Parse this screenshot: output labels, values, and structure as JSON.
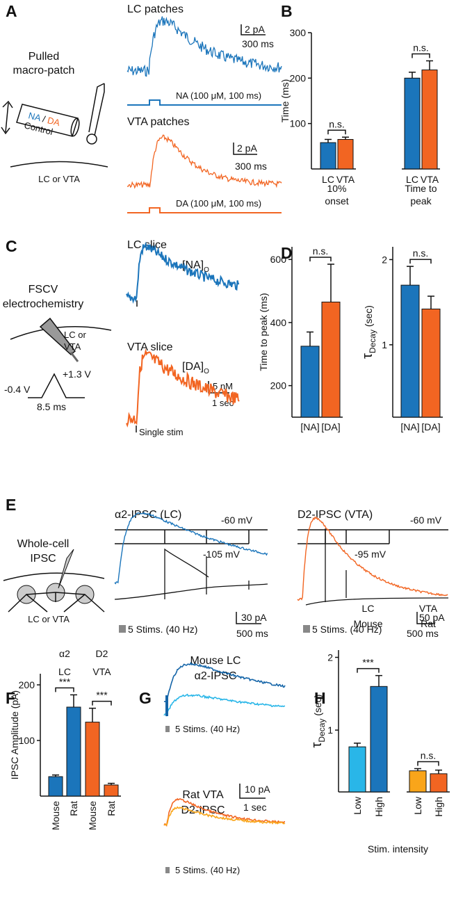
{
  "panel_labels": [
    "A",
    "B",
    "C",
    "D",
    "E",
    "F",
    "G",
    "H"
  ],
  "panel_A": {
    "lc_title": "LC patches",
    "lc_scale_y": "2 pA",
    "lc_scale_x": "300 ms",
    "setup": [
      "Pulled",
      "macro-patch"
    ],
    "na": "NA",
    "slash": " / ",
    "da": "DA",
    "control": "Control",
    "region": "LC or VTA",
    "lc_stim": "NA (100 μM, 100 ms)",
    "vta_title": "VTA patches",
    "vta_scale_y": "2 pA",
    "vta_scale_x": "300 ms",
    "vta_stim": "DA (100 μM, 100 ms)"
  },
  "panel_C": {
    "setup": [
      "FSCV",
      "electrochemistry"
    ],
    "region": [
      "LC or",
      "VTA"
    ],
    "v_low": "-0.4 V",
    "v_high": "+1.3 V",
    "duration": "8.5 ms",
    "lc_title": "LC slice",
    "lc_label": {
      "main": "[NA]",
      "sub": "O"
    },
    "vta_title": "VTA slice",
    "vta_label": {
      "main": "[DA]",
      "sub": "O"
    },
    "scale_y": "5 nM",
    "scale_x": "1 sec",
    "stim": "Single stim"
  },
  "panel_E": {
    "setup": [
      "Whole-cell",
      "IPSC"
    ],
    "region": "LC or VTA",
    "lc_title": "α2-IPSC (LC)",
    "lc_hold": "-60 mV",
    "lc_step": "-105 mV",
    "lc_scale_y": "30 pA",
    "lc_scale_x": "500 ms",
    "lc_stim": "5 Stims. (40 Hz)",
    "vta_title": "D2-IPSC (VTA)",
    "vta_hold": "-60 mV",
    "vta_step": "-95 mV",
    "vta_scale_y": "50 pA",
    "vta_scale_x": "500 ms",
    "vta_stim": "5 Stims. (40 Hz)"
  },
  "panel_G": {
    "mouse_title": [
      "Mouse LC",
      "α2-IPSC"
    ],
    "mouse_stim": "5 Stims. (40 Hz)",
    "rat_title": [
      "Rat VTA",
      "D2-IPSC"
    ],
    "scale_y": "10 pA",
    "scale_x": "1 sec",
    "rat_stim": "5 Stims. (40 Hz)"
  },
  "chart_data": [
    {
      "type": "bar",
      "ylabel": "Time (ms)",
      "categories": [
        "LC",
        "VTA",
        "LC",
        "VTA"
      ],
      "values": [
        58,
        65,
        200,
        218
      ],
      "errors": [
        7,
        5,
        13,
        20
      ],
      "colors": [
        "#1b75bb",
        "#f26522",
        "#1b75bb",
        "#f26522"
      ],
      "groups": [
        [
          "10%",
          "onset"
        ],
        [
          "Time to",
          "peak"
        ]
      ],
      "annotations": [
        "n.s.",
        "n.s."
      ],
      "ylim": [
        0,
        300
      ],
      "yticks": [
        100,
        200,
        300
      ]
    },
    {
      "type": "bar",
      "ylabel": "Time to peak (ms)",
      "categories": [
        "[NA]",
        "[DA]"
      ],
      "values": [
        325,
        465
      ],
      "errors": [
        45,
        120
      ],
      "colors": [
        "#1b75bb",
        "#f26522"
      ],
      "annotations": [
        "n.s."
      ],
      "ylim": [
        100,
        640
      ],
      "yticks": [
        200,
        400,
        600
      ]
    },
    {
      "type": "bar",
      "ylabel": {
        "main": "τ",
        "sub": "Decay"
      },
      "ylabel_unit": " (sec)",
      "categories": [
        "[NA]",
        "[DA]"
      ],
      "values": [
        1.7,
        1.42
      ],
      "errors": [
        0.22,
        0.15
      ],
      "colors": [
        "#1b75bb",
        "#f26522"
      ],
      "annotations": [
        "n.s."
      ],
      "ylim": [
        0.15,
        2.15
      ],
      "yticks": [
        1,
        2
      ]
    },
    {
      "type": "bar",
      "ylabel": "IPSC Amplitude (pA)",
      "categories": [
        "Mouse",
        "Rat",
        "Mouse",
        "Rat"
      ],
      "values": [
        35,
        160,
        133,
        20
      ],
      "errors": [
        3,
        22,
        25,
        3
      ],
      "colors": [
        "#1b75bb",
        "#1b75bb",
        "#f26522",
        "#f26522"
      ],
      "groups": [
        [
          "α2",
          "LC"
        ],
        [
          "D2",
          "VTA"
        ]
      ],
      "annotations": [
        "***",
        "***"
      ],
      "ylim": [
        0,
        220
      ],
      "yticks": [
        100,
        200
      ]
    },
    {
      "type": "bar",
      "ylabel": {
        "main": "τ",
        "sub": "Decay"
      },
      "ylabel_unit": " (sec)",
      "xlabel": "Stim. intensity",
      "categories": [
        "Low",
        "High",
        "Low",
        "High"
      ],
      "values": [
        0.77,
        1.6,
        0.44,
        0.4
      ],
      "errors": [
        0.05,
        0.15,
        0.03,
        0.05
      ],
      "colors": [
        "#29b6e8",
        "#1b75bb",
        "#f9a51a",
        "#f26522"
      ],
      "groups": [
        [
          "LC",
          "Mouse"
        ],
        [
          "VTA",
          "Rat"
        ]
      ],
      "annotations": [
        "***",
        "n.s."
      ],
      "ylim": [
        0.15,
        2.1
      ],
      "yticks": [
        1,
        2
      ]
    }
  ]
}
